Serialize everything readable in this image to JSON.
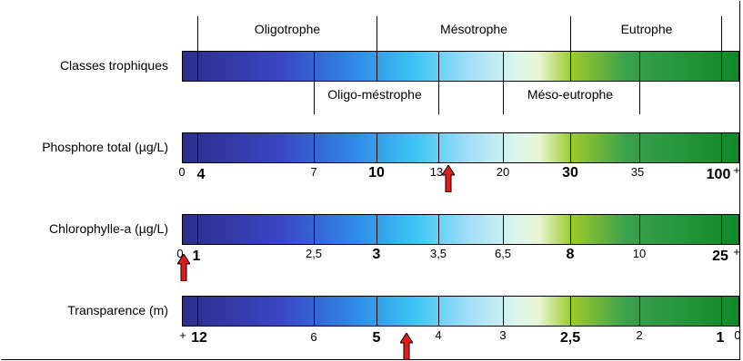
{
  "rows": [
    {
      "label": "Classes trophiques"
    },
    {
      "label": "Phosphore total (µg/L)",
      "ticks": [
        "0",
        "4",
        "7",
        "10",
        "13",
        "20",
        "30",
        "35",
        "100",
        "+"
      ]
    },
    {
      "label": "Chlorophylle-a (µg/L)",
      "ticks": [
        "0",
        "1",
        "2,5",
        "3",
        "3,5",
        "6,5",
        "8",
        "10",
        "25",
        "+"
      ]
    },
    {
      "label": "Transparence (m)",
      "ticks": [
        "+",
        "12",
        "6",
        "5",
        "4",
        "3",
        "2,5",
        "2",
        "1",
        "0"
      ]
    }
  ],
  "classes_top": [
    "Oligotrophe",
    "Mésotrophe",
    "Eutrophe"
  ],
  "classes_bottom": [
    "Oligo-méstrophe",
    "Méso-eutrophe"
  ],
  "colors": {
    "arrow": "#e01b1b",
    "bar_start": "#2b2e8a",
    "bar_end": "#0f8a26"
  }
}
